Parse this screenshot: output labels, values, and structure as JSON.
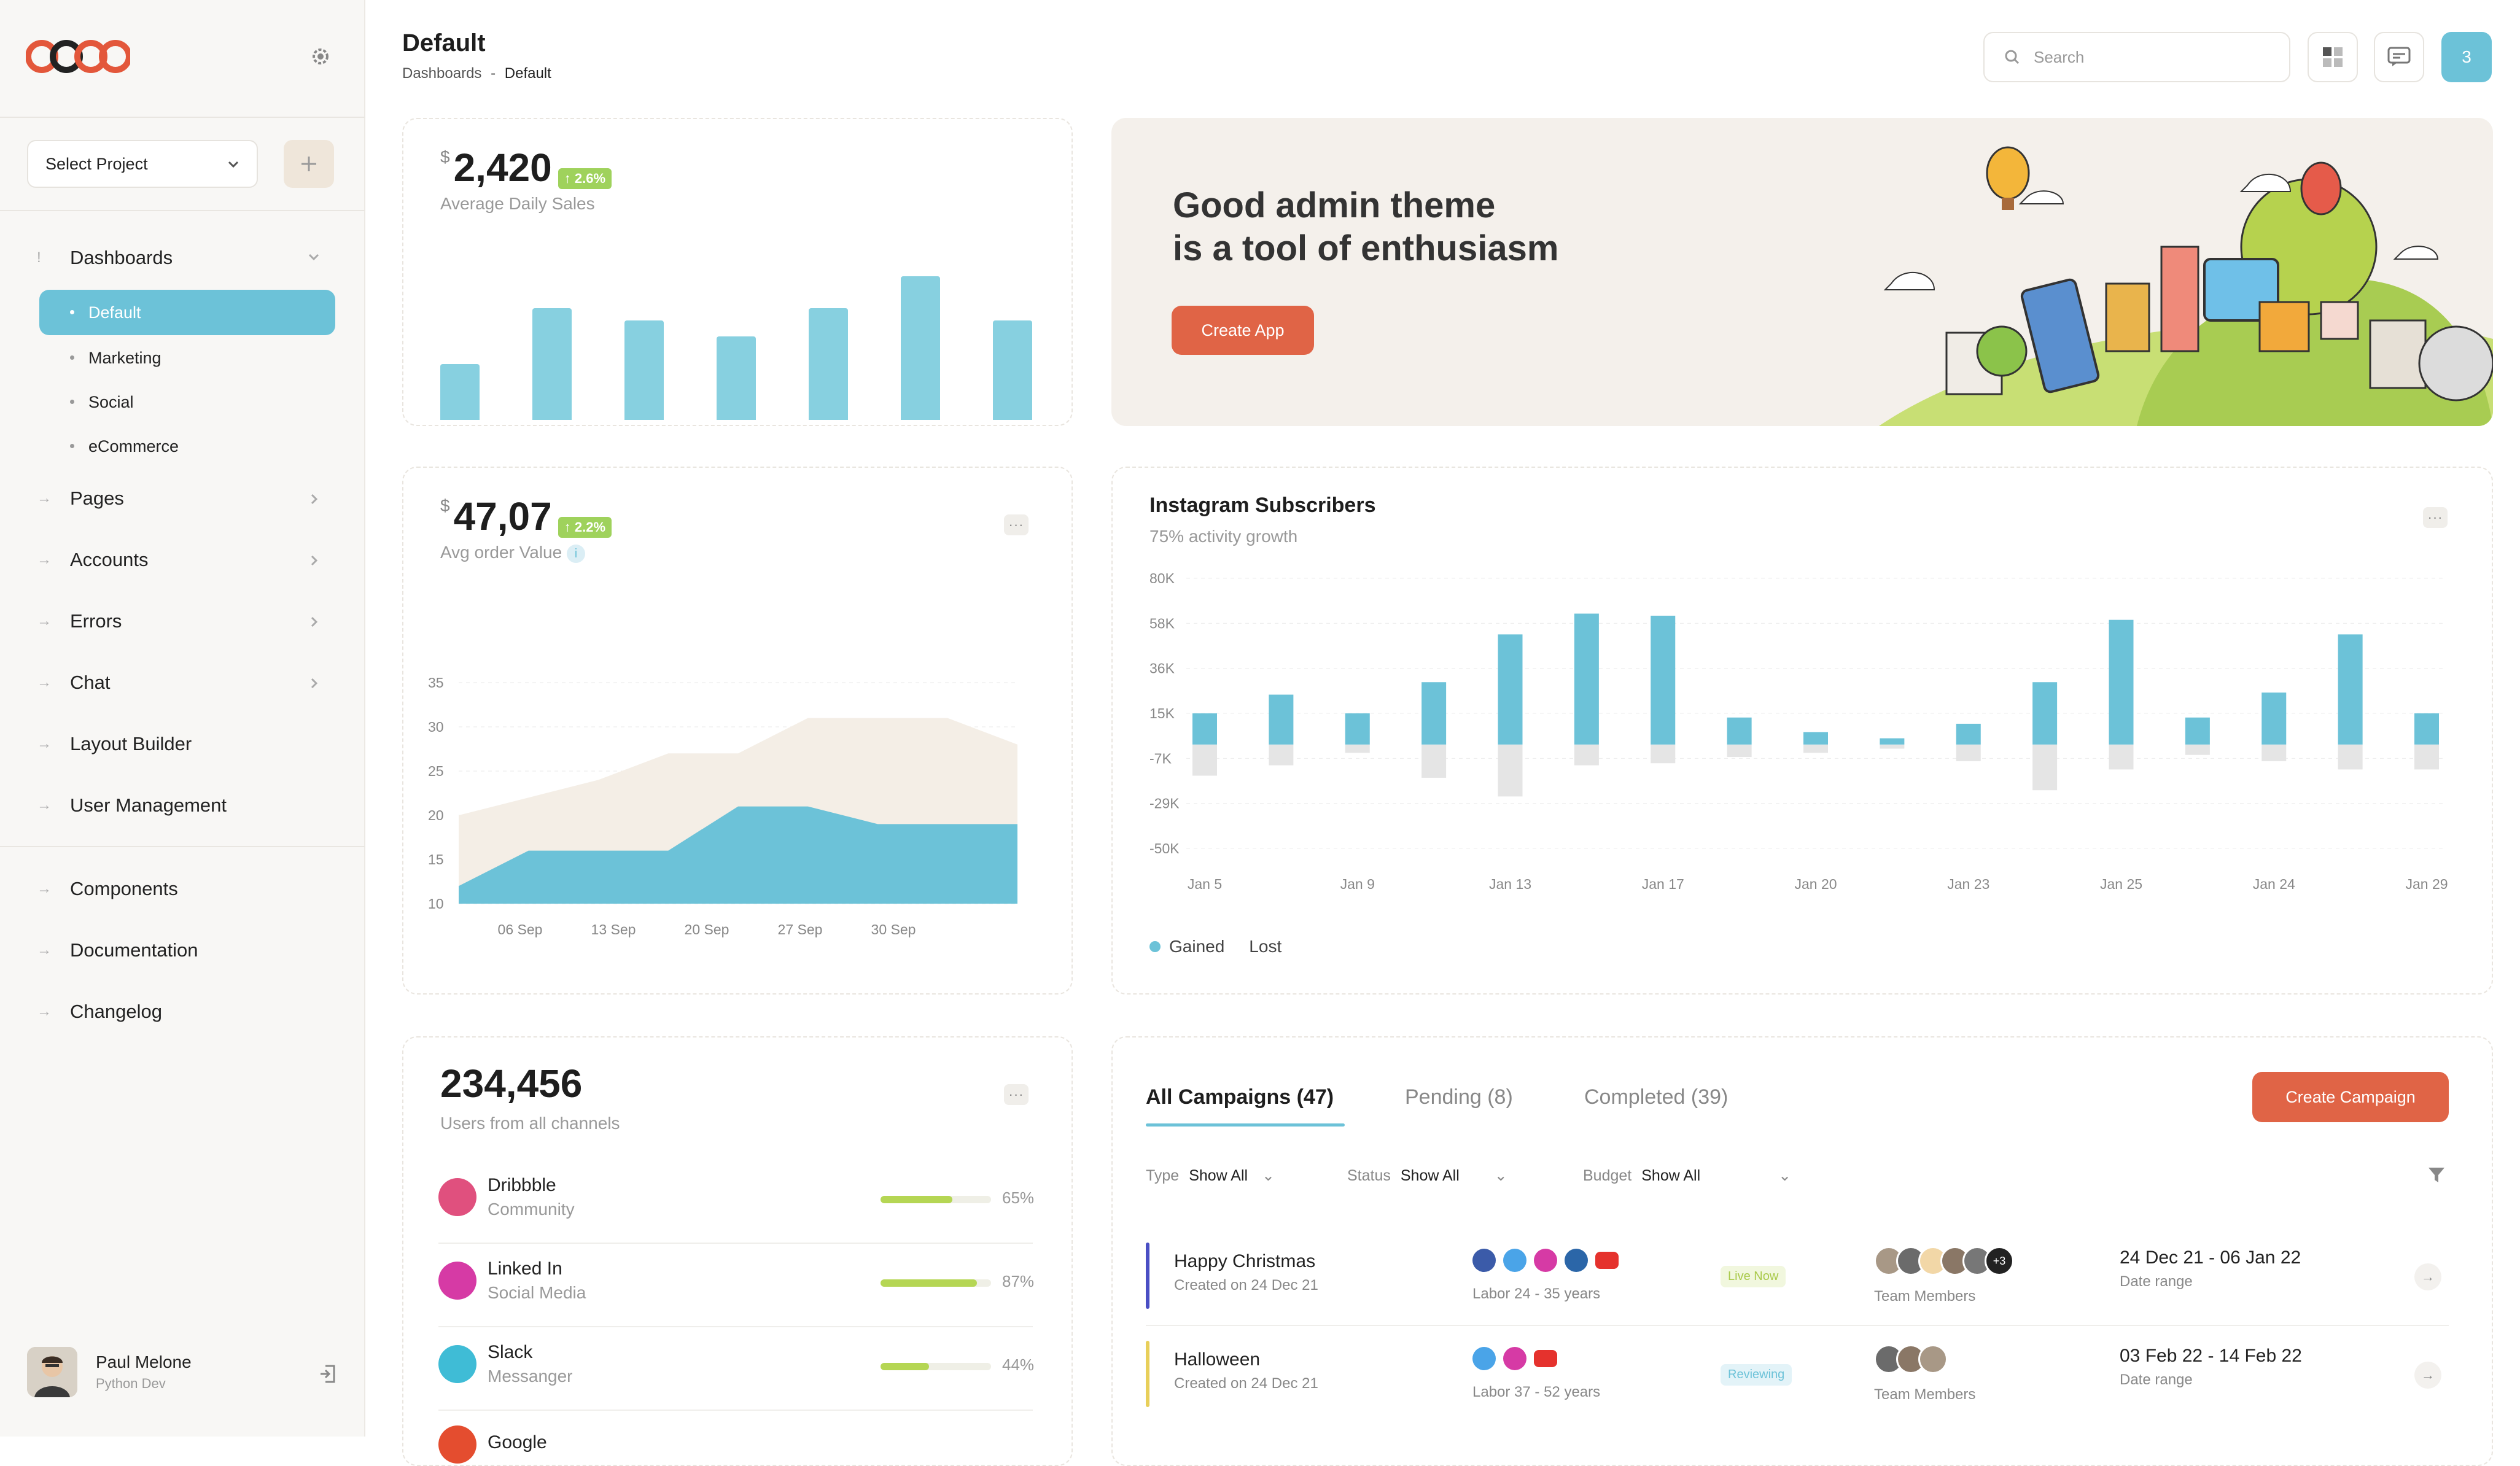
{
  "sidebar": {
    "select_project": "Select Project",
    "nav": [
      {
        "label": "Dashboards",
        "open": true
      },
      {
        "label": "Pages"
      },
      {
        "label": "Accounts"
      },
      {
        "label": "Errors"
      },
      {
        "label": "Chat"
      },
      {
        "label": "Layout Builder"
      },
      {
        "label": "User Management"
      }
    ],
    "subnav": [
      "Default",
      "Marketing",
      "Social",
      "eCommerce"
    ],
    "nav2": [
      "Components",
      "Documentation",
      "Changelog"
    ],
    "user": {
      "name": "Paul Melone",
      "role": "Python Dev"
    }
  },
  "header": {
    "title": "Default",
    "crumb_root": "Dashboards",
    "crumb_sep": "-",
    "crumb_current": "Default",
    "search_placeholder": "Search",
    "notif_count": "3"
  },
  "sales": {
    "currency": "$",
    "value": "2,420",
    "change": "2.6%",
    "label": "Average Daily Sales"
  },
  "sales_chart": {
    "type": "bar",
    "values": [
      28,
      56,
      50,
      42,
      56,
      72,
      50
    ],
    "ymax": 80
  },
  "banner": {
    "line1": "Good admin theme",
    "line2": "is a tool of enthusiasm",
    "button": "Create App"
  },
  "order": {
    "currency": "$",
    "value": "47,07",
    "change": "2.2%",
    "label": "Avg order Value"
  },
  "order_chart": {
    "type": "area",
    "ylim": [
      10,
      35
    ],
    "yticks": [
      "35",
      "30",
      "25",
      "20",
      "15",
      "10"
    ],
    "xticks": [
      "06 Sep",
      "13 Sep",
      "20 Sep",
      "27 Sep",
      "30 Sep"
    ],
    "series": [
      {
        "values": [
          20,
          22,
          24,
          27,
          27,
          31,
          31,
          31,
          28
        ]
      },
      {
        "values": [
          12,
          16,
          16,
          16,
          21,
          21,
          19,
          19,
          19
        ]
      }
    ]
  },
  "insta": {
    "title": "Instagram Subscribers",
    "subtitle": "75% activity growth",
    "yticks": [
      "80K",
      "58K",
      "36K",
      "15K",
      "-7K",
      "-29K",
      "-50K"
    ],
    "xticks": [
      "Jan 5",
      "Jan 9",
      "Jan 13",
      "Jan 17",
      "Jan 20",
      "Jan 23",
      "Jan 25",
      "Jan 24",
      "Jan 29"
    ],
    "legend_gained": "Gained",
    "legend_lost": "Lost"
  },
  "chart_data": {
    "type": "bar",
    "title": "Instagram Subscribers",
    "ylim": [
      -50,
      80
    ],
    "series": [
      {
        "name": "Gained",
        "values": [
          15,
          24,
          15,
          30,
          53,
          63,
          62,
          13,
          6,
          3,
          10,
          30,
          60,
          13,
          25,
          53,
          15
        ]
      },
      {
        "name": "Lost",
        "values": [
          -15,
          -10,
          -4,
          -16,
          -25,
          -10,
          -9,
          -6,
          -4,
          -2,
          -8,
          -22,
          -12,
          -5,
          -8,
          -12,
          -12
        ]
      }
    ]
  },
  "users": {
    "value": "234,456",
    "label": "Users from all channels",
    "channels": [
      {
        "name": "Dribbble",
        "type": "Community",
        "pct": "65%",
        "v": 0.65,
        "color": "#e0507e"
      },
      {
        "name": "Linked In",
        "type": "Social Media",
        "pct": "87%",
        "v": 0.87,
        "color": "#d63aa5"
      },
      {
        "name": "Slack",
        "type": "Messanger",
        "pct": "44%",
        "v": 0.44,
        "color": "#3fbcd6"
      },
      {
        "name": "Google",
        "type": "",
        "pct": "",
        "v": 0,
        "color": "#e44d2f"
      }
    ]
  },
  "campaigns": {
    "tabs": [
      "All Campaigns (47)",
      "Pending (8)",
      "Completed (39)"
    ],
    "create": "Create Campaign",
    "filters": [
      {
        "label": "Type",
        "value": "Show All"
      },
      {
        "label": "Status",
        "value": "Show All"
      },
      {
        "label": "Budget",
        "value": "Show All"
      }
    ],
    "rows": [
      {
        "name": "Happy Christmas",
        "created": "Created on 24 Dec 21",
        "labor": "Labor 24 - 35 years",
        "status": "Live Now",
        "members": "Team Members",
        "plus": "+3",
        "dates": "24 Dec 21 - 06 Jan 22",
        "date_label": "Date range",
        "bar": "#4a4fc4"
      },
      {
        "name": "Halloween",
        "created": "Created on 24 Dec 21",
        "labor": "Labor 37 - 52 years",
        "status": "Reviewing",
        "members": "Team Members",
        "dates": "03 Feb 22 - 14 Feb 22",
        "date_label": "Date range",
        "bar": "#e8cf5a"
      }
    ]
  }
}
